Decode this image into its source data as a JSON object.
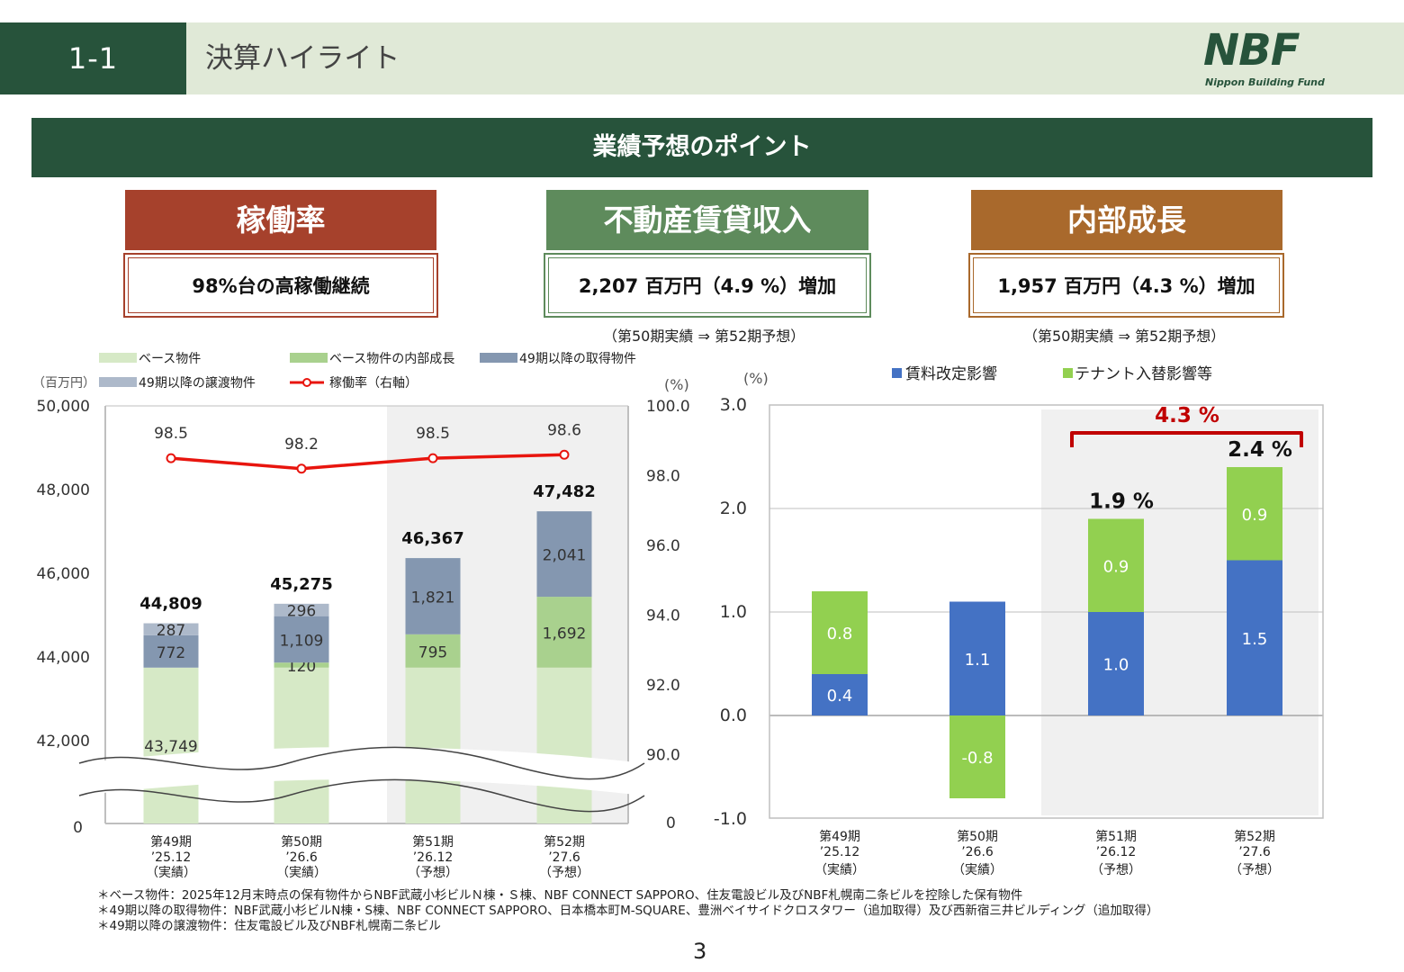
{
  "header": {
    "section_num": "1-1",
    "title": "決算ハイライト",
    "logo_main": "NBF",
    "logo_sub": "Nippon Building Fund"
  },
  "banner": "業績予想のポイント",
  "cards": [
    {
      "title": "稼働率",
      "value": "98%台の高稼働継続",
      "note": "",
      "color": "#a6412c"
    },
    {
      "title": "不動産賃貸収入",
      "value": "2,207 百万円（4.9 %）増加",
      "note": "（第50期実績 ⇒ 第52期予想）",
      "color": "#5e8b5c"
    },
    {
      "title": "内部成長",
      "value": "1,957 百万円（4.3 %）増加",
      "note": "（第50期実績 ⇒ 第52期予想）",
      "color": "#a9692c"
    }
  ],
  "chart_data": [
    {
      "type": "bar",
      "stacked": true,
      "left_unit": "（百万円）",
      "right_unit": "(%)",
      "categories": [
        [
          "第49期",
          "’25.12",
          "（実績）"
        ],
        [
          "第50期",
          "’26.6",
          "（実績）"
        ],
        [
          "第51期",
          "’26.12",
          "（予想）"
        ],
        [
          "第52期",
          "’27.6",
          "（予想）"
        ]
      ],
      "y_ticks": [
        "50,000",
        "48,000",
        "46,000",
        "44,000",
        "42,000",
        "0"
      ],
      "y2_ticks": [
        "100.0",
        "98.0",
        "96.0",
        "94.0",
        "92.0",
        "90.0",
        "0"
      ],
      "ylim_display": [
        42000,
        50000
      ],
      "y2lim": [
        90,
        100
      ],
      "axis_break": true,
      "shaded_forecast_from_index": 2,
      "series": [
        {
          "name": "ベース物件",
          "values": [
            43749,
            43749,
            43749,
            43749
          ],
          "labels": [
            "43,749",
            "",
            "",
            ""
          ],
          "color": "#d6e9c6"
        },
        {
          "name": "ベース物件の内部成長",
          "values": [
            0,
            120,
            795,
            1692
          ],
          "labels": [
            "",
            "120",
            "795",
            "1,692"
          ],
          "color": "#a9d18e"
        },
        {
          "name": "49期以降の取得物件",
          "values": [
            772,
            1109,
            1821,
            2041
          ],
          "labels": [
            "772",
            "1,109",
            "1,821",
            "2,041"
          ],
          "color": "#8497b0"
        },
        {
          "name": "49期以降の譲渡物件",
          "values": [
            287,
            296,
            0,
            0
          ],
          "labels": [
            "287",
            "296",
            "",
            ""
          ],
          "color": "#adb9ca"
        }
      ],
      "totals": [
        44809,
        45275,
        46367,
        47482
      ],
      "total_labels": [
        "44,809",
        "45,275",
        "46,367",
        "47,482"
      ],
      "line": {
        "name": "稼働率（右軸）",
        "values": [
          98.5,
          98.2,
          98.5,
          98.6
        ],
        "labels": [
          "98.5",
          "98.2",
          "98.5",
          "98.6"
        ],
        "color": "#e8150e"
      }
    },
    {
      "type": "bar",
      "stacked": true,
      "y_unit": "(%)",
      "categories": [
        [
          "第49期",
          "’25.12",
          "（実績）"
        ],
        [
          "第50期",
          "’26.6",
          "（実績）"
        ],
        [
          "第51期",
          "’26.12",
          "（予想）"
        ],
        [
          "第52期",
          "’27.6",
          "（予想）"
        ]
      ],
      "y_ticks": [
        "3.0",
        "2.0",
        "1.0",
        "0.0",
        "-1.0"
      ],
      "ylim": [
        -1.0,
        3.0
      ],
      "grid": true,
      "shaded_forecast_from_index": 2,
      "series": [
        {
          "name": "賃料改定影響",
          "values": [
            0.4,
            1.1,
            1.0,
            1.5
          ],
          "labels": [
            "0.4",
            "1.1",
            "1.0",
            "1.5"
          ],
          "color": "#4472c4"
        },
        {
          "name": "テナント入替影響等",
          "values": [
            0.8,
            -0.8,
            0.9,
            0.9
          ],
          "labels": [
            "0.8",
            "-0.8",
            "0.9",
            "0.9"
          ],
          "color": "#92d050"
        }
      ],
      "total_labels": [
        "",
        "",
        "1.9 %",
        "2.4 %"
      ],
      "bracket_label": "4.3 %"
    }
  ],
  "footnotes": [
    "＊ベース物件：2025年12月末時点の保有物件からNBF武蔵小杉ビルＮ棟・Ｓ棟、NBF CONNECT SAPPORO、住友電設ビル及びNBF札幌南二条ビルを控除した保有物件",
    "＊49期以降の取得物件：NBF武蔵小杉ビルN棟・S棟、NBF CONNECT SAPPORO、日本橋本町M-SQUARE、豊洲ベイサイドクロスタワー（追加取得）及び西新宿三井ビルディング（追加取得）",
    "＊49期以降の譲渡物件：住友電設ビル及びNBF札幌南二条ビル"
  ],
  "page_number": "3"
}
